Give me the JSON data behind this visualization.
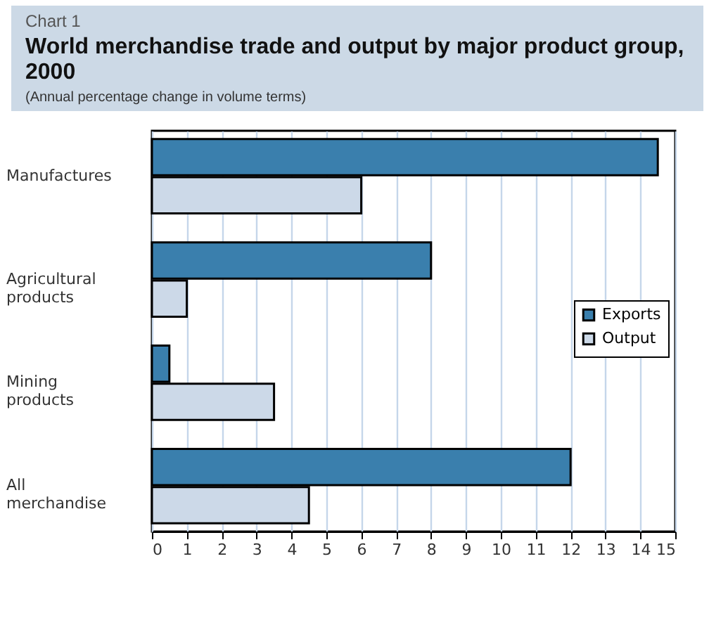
{
  "chart_data": {
    "type": "bar",
    "orientation": "horizontal",
    "title": "World merchandise trade and output by major product group, 2000",
    "subtitle": "(Annual percentage change in volume terms)",
    "annotations": [
      "Chart 1"
    ],
    "categories": [
      "Manufactures",
      "Agricultural products",
      "Mining products",
      "All merchandise"
    ],
    "series": [
      {
        "name": "Exports",
        "color": "#3a7fad",
        "values": [
          14.5,
          8,
          0.5,
          12
        ]
      },
      {
        "name": "Output",
        "color": "#ccd9e8",
        "values": [
          6,
          1,
          3.5,
          4.5
        ]
      }
    ],
    "xlim": [
      0,
      15
    ],
    "xticks": [
      0,
      1,
      2,
      3,
      4,
      5,
      6,
      7,
      8,
      9,
      10,
      11,
      12,
      13,
      14,
      15
    ],
    "grid": "x",
    "legend": "right"
  }
}
